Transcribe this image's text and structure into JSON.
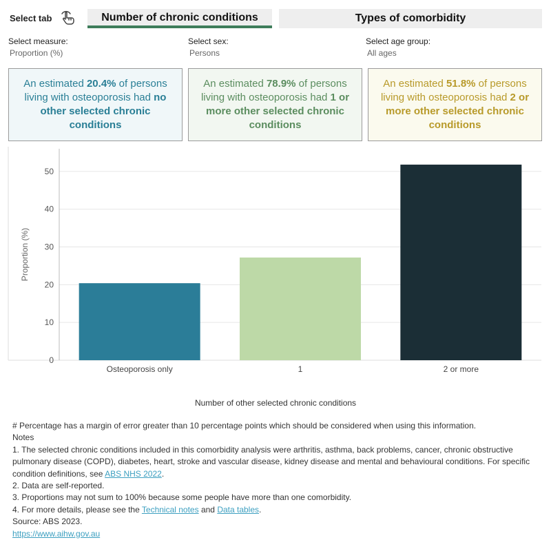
{
  "tabs": {
    "select_label": "Select tab",
    "icon": "hand-pointer-icon",
    "active": "Number of chronic conditions",
    "inactive": "Types of comorbidity"
  },
  "filters": {
    "measure": {
      "label": "Select measure:",
      "value": "Proportion (%)"
    },
    "sex": {
      "label": "Select sex:",
      "value": "Persons"
    },
    "age": {
      "label": "Select age group:",
      "value": "All ages"
    }
  },
  "summary": {
    "box1": {
      "pre": "An estimated ",
      "pct": "20.4%",
      "mid": " of persons living with osteoporosis had ",
      "bold": "no other selected chronic conditions"
    },
    "box2": {
      "pre": "An estimated ",
      "pct": "78.9%",
      "mid": " of persons living with osteoporosis had ",
      "bold": "1 or more other selected chronic conditions"
    },
    "box3": {
      "pre": "An estimated ",
      "pct": "51.8%",
      "mid": " of persons living with osteoporosis had ",
      "bold": "2 or more other selected chronic conditions"
    }
  },
  "colors": {
    "bar1": "#2b7d98",
    "bar2": "#bdd9a7",
    "bar3": "#1b2e36",
    "grid": "#e6e6e6",
    "axis": "#666666"
  },
  "chart_data": {
    "type": "bar",
    "categories": [
      "Osteoporosis only",
      "1",
      "2 or more"
    ],
    "values": [
      20.4,
      27.2,
      51.8
    ],
    "xlabel": "Number of other selected chronic conditions",
    "ylabel": "Proportion (%)",
    "ylim": [
      0,
      56
    ],
    "yticks": [
      0,
      10,
      20,
      30,
      40,
      50
    ],
    "grid": true
  },
  "notes": {
    "margin": "# Percentage has a margin of error greater than 10 percentage points which should be considered when using this information.",
    "heading": "Notes",
    "n1_text": "1. The selected chronic conditions included in this comorbidity analysis were arthritis, asthma, back problems, cancer, chronic obstructive pulmonary disease (COPD), diabetes, heart, stroke and vascular disease, kidney disease and mental and behavioural conditions. For specific condition definitions, see ",
    "n1_link": "ABS NHS 2022",
    "n1_end": ".",
    "n2": "2. Data are self-reported.",
    "n3": "3. Proportions may not sum to 100% because some people have more than one comorbidity.",
    "n4_text": "4. For more details, please see the ",
    "n4_link1": "Technical notes",
    "n4_and": " and ",
    "n4_link2": "Data tables",
    "n4_end": ".",
    "source": "Source: ABS 2023.",
    "url": "https://www.aihw.gov.au"
  }
}
